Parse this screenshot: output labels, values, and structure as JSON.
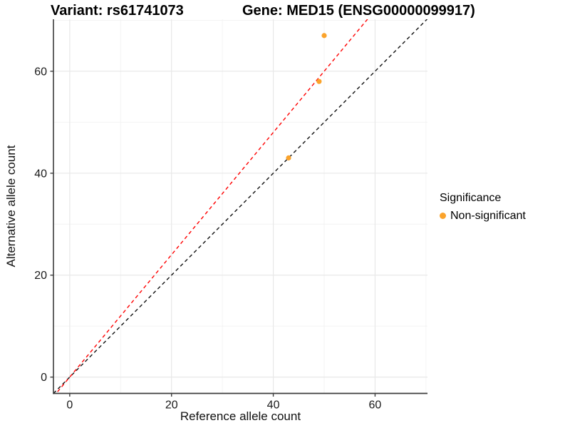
{
  "header": {
    "title_left": "Variant: rs61741073",
    "title_right": "Gene: MED15 (ENSG00000099917)"
  },
  "chart_data": {
    "type": "scatter",
    "title": "Variant: rs61741073   Gene: MED15 (ENSG00000099917)",
    "xlabel": "Reference allele count",
    "ylabel": "Alternative allele count",
    "xlim": [
      -3.2,
      70.3
    ],
    "ylim": [
      -3.2,
      70.2
    ],
    "x_ticks": [
      0,
      20,
      40,
      60
    ],
    "y_ticks": [
      0,
      20,
      40,
      60
    ],
    "x_minor_gridlines": [
      10,
      30,
      50,
      70
    ],
    "y_minor_gridlines": [
      10,
      30,
      50,
      70
    ],
    "grid": "major+minor",
    "points": [
      {
        "x": 50,
        "y": 67,
        "series": "Non-significant"
      },
      {
        "x": 49,
        "y": 58,
        "series": "Non-significant"
      },
      {
        "x": 43,
        "y": 43,
        "series": "Non-significant"
      }
    ],
    "point_color": "#FBA32B",
    "point_radius_px": 3.6,
    "reference_lines": [
      {
        "name": "identity-line",
        "slope": 1,
        "intercept": 0,
        "color": "#111111",
        "style": "dashed"
      },
      {
        "name": "fit-line",
        "slope": 1.2,
        "intercept": 0,
        "color": "#FF0000",
        "style": "dashed"
      }
    ],
    "legend": {
      "position": "right",
      "title": "Significance",
      "items": [
        {
          "label": "Non-significant",
          "color": "#FBA32B"
        }
      ]
    }
  },
  "colors": {
    "background": "#FFFFFF",
    "axis_line": "#3C3C3C",
    "tick_label": "#1A1A1A",
    "grid_major": "#E8E8E8",
    "grid_minor": "#F2F2F2"
  }
}
